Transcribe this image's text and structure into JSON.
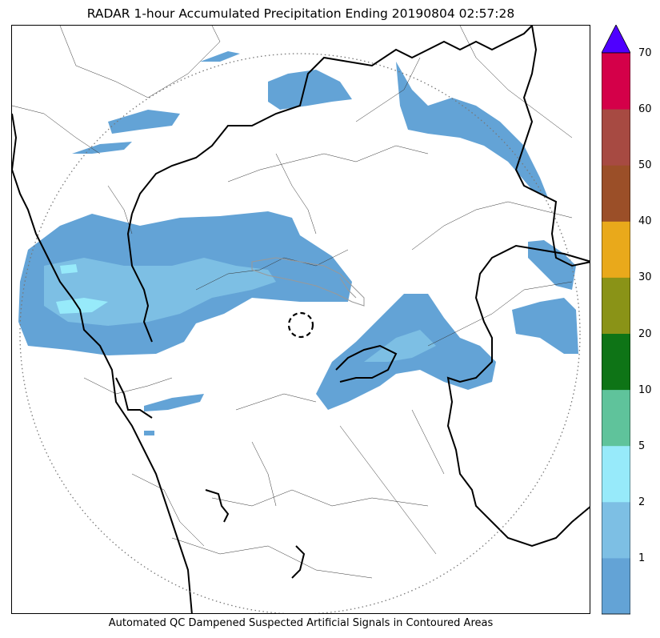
{
  "title": "RADAR 1-hour Accumulated Precipitation Ending 20190804 02:57:28",
  "caption": "Automated QC Dampened Suspected Artificial Signals in Contoured Areas",
  "colorbar": {
    "labels": [
      "70",
      "60",
      "50",
      "40",
      "30",
      "20",
      "10",
      "5",
      "2",
      "1"
    ],
    "colors": [
      "#63a3d6",
      "#7dbfe4",
      "#97eafa",
      "#5fc39b",
      "#0e7416",
      "#8a9317",
      "#e9a91b",
      "#9b4f28",
      "#a74a42",
      "#d40049"
    ],
    "extend_color": "#4f00ff"
  },
  "map": {
    "range_ring": "dotted",
    "radar_site_marker": "dashed-circle",
    "precip_colors": {
      "light": "#63a3d6",
      "moderate": "#7dbfe4",
      "heavy": "#97eafa"
    }
  }
}
